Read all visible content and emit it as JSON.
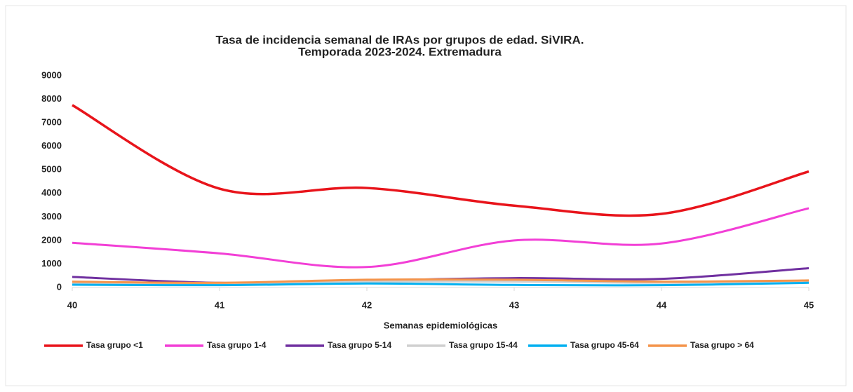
{
  "chart_data": {
    "type": "line",
    "title": [
      "Tasa de incidencia semanal de IRAs por grupos de edad. SiVIRA.",
      "Temporada 2023-2024. Extremadura"
    ],
    "x_label": "Semanas epidemiológicas",
    "categories": [
      "40",
      "41",
      "42",
      "43",
      "44",
      "45"
    ],
    "ylim": [
      0,
      9000
    ],
    "yticks": [
      0,
      1000,
      2000,
      3000,
      4000,
      5000,
      6000,
      7000,
      8000,
      9000
    ],
    "smooth": true,
    "legend": "bottom",
    "series": [
      {
        "name": "Tasa grupo <1",
        "color": "#e8141b",
        "values": [
          7750,
          4200,
          4230,
          3480,
          3130,
          4930
        ]
      },
      {
        "name": "Tasa grupo 1-4",
        "color": "#f23fd6",
        "values": [
          1900,
          1450,
          870,
          2000,
          1870,
          3370
        ]
      },
      {
        "name": "Tasa grupo 5-14",
        "color": "#7030a0",
        "values": [
          450,
          200,
          300,
          400,
          370,
          820
        ]
      },
      {
        "name": "Tasa grupo 15-44",
        "color": "#d0d0d0",
        "values": [
          200,
          150,
          250,
          250,
          200,
          280
        ]
      },
      {
        "name": "Tasa grupo 45-64",
        "color": "#00b0f0",
        "values": [
          120,
          100,
          170,
          110,
          100,
          200
        ]
      },
      {
        "name": "Tasa grupo > 64",
        "color": "#f4944a",
        "values": [
          250,
          200,
          330,
          330,
          250,
          300
        ]
      }
    ]
  }
}
